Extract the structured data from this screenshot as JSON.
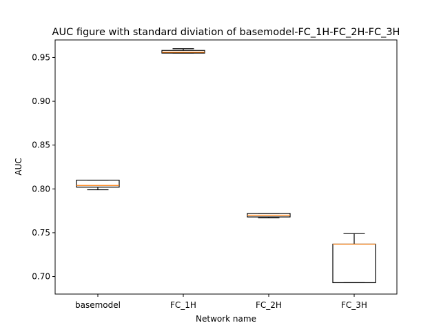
{
  "chart_data": {
    "type": "box",
    "title": "AUC figure with standard diviation of basemodel-FC_1H-FC_2H-FC_3H",
    "xlabel": "Network name",
    "ylabel": "AUC",
    "ylim": [
      0.68,
      0.97
    ],
    "yticks": [
      0.7,
      0.75,
      0.8,
      0.85,
      0.9,
      0.95
    ],
    "ytick_labels": [
      "0.70",
      "0.75",
      "0.80",
      "0.85",
      "0.90",
      "0.95"
    ],
    "categories": [
      "basemodel",
      "FC_1H",
      "FC_2H",
      "FC_3H"
    ],
    "boxes": [
      {
        "whisker_low": 0.799,
        "q1": 0.802,
        "median": 0.804,
        "q3": 0.81,
        "whisker_high": 0.81
      },
      {
        "whisker_low": 0.955,
        "q1": 0.955,
        "median": 0.956,
        "q3": 0.958,
        "whisker_high": 0.96
      },
      {
        "whisker_low": 0.767,
        "q1": 0.768,
        "median": 0.77,
        "q3": 0.772,
        "whisker_high": 0.772
      },
      {
        "whisker_low": 0.693,
        "q1": 0.693,
        "median": 0.737,
        "q3": 0.737,
        "whisker_high": 0.749
      }
    ],
    "grid": false,
    "colors": {
      "box": "#000000",
      "median": "#ff7f0e",
      "axes": "#000000"
    }
  }
}
